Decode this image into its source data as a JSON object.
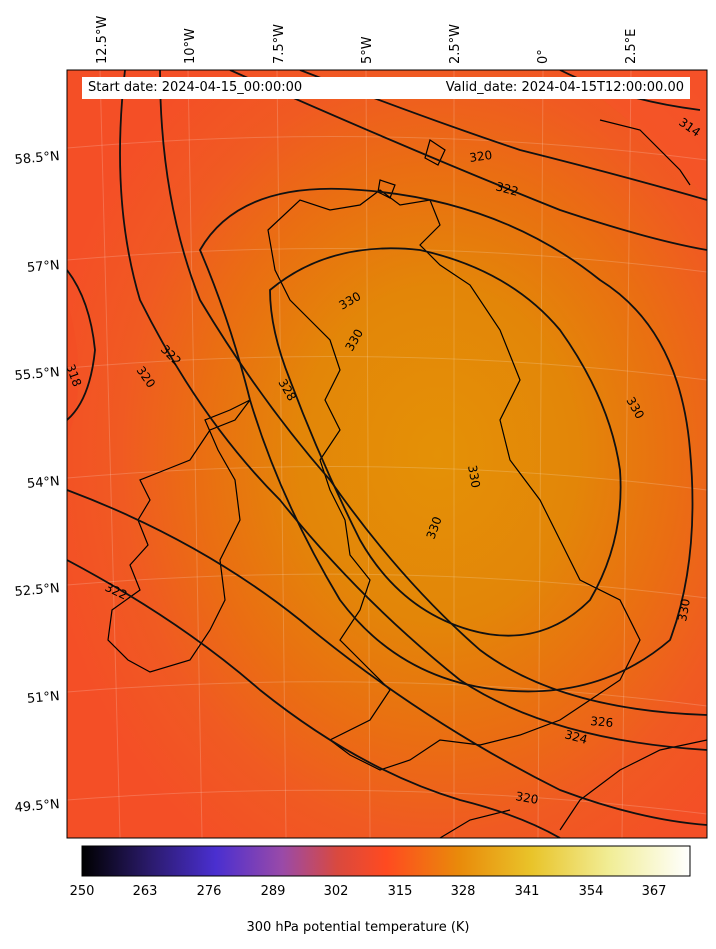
{
  "header": {
    "start_date": "Start date: 2024-04-15_00:00:00",
    "valid_date": "Valid_date: 2024-04-15T12:00:00.00"
  },
  "longitude_labels": [
    "12.5°W",
    "10°W",
    "7.5°W",
    "5°W",
    "2.5°W",
    "0°",
    "2.5°E"
  ],
  "latitude_labels": [
    "58.5°N",
    "57°N",
    "55.5°N",
    "54°N",
    "52.5°N",
    "51°N",
    "49.5°N"
  ],
  "contour_labels": [
    "314",
    "318",
    "320",
    "320",
    "320",
    "322",
    "322",
    "322",
    "324",
    "326",
    "328",
    "330",
    "330",
    "330",
    "330",
    "330",
    "330"
  ],
  "colorbar": {
    "label": "300 hPa potential temperature (K)",
    "ticks": [
      "250",
      "263",
      "276",
      "289",
      "302",
      "315",
      "328",
      "341",
      "354",
      "367"
    ],
    "range": [
      250,
      372
    ],
    "colormap": [
      "#000000",
      "#2a1a6a",
      "#4a2fd0",
      "#9a4aa8",
      "#d9493f",
      "#ff4a20",
      "#e98a0a",
      "#e9c42a",
      "#f1ee98",
      "#ffffff"
    ]
  },
  "colors": {
    "warm_field": "#e08a06",
    "edge_field": "#f5572a",
    "contour": "#111111",
    "coastline": "#000000"
  }
}
